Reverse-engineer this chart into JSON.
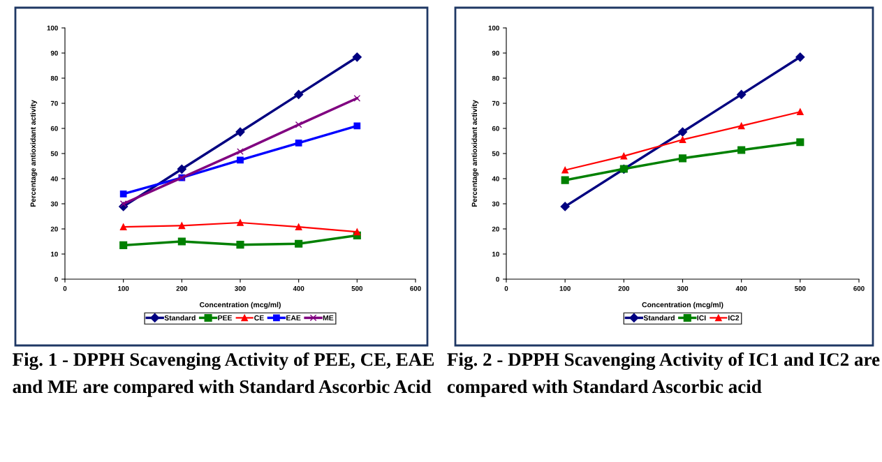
{
  "chart_data": [
    {
      "type": "line",
      "xlabel": "Concentration (mcg/ml)",
      "ylabel": "Percentage antioxidant activity",
      "x": [
        100,
        200,
        300,
        400,
        500
      ],
      "series": [
        {
          "name": "Standard",
          "color": "#000080",
          "marker": "diamond",
          "values": [
            28.9,
            43.8,
            58.6,
            73.5,
            88.4
          ]
        },
        {
          "name": "PEE",
          "color": "#008000",
          "marker": "square",
          "values": [
            13.5,
            15.0,
            13.7,
            14.1,
            17.4
          ]
        },
        {
          "name": "CE",
          "color": "#ff0000",
          "marker": "triangle",
          "values": [
            20.8,
            21.3,
            22.5,
            20.8,
            18.8
          ]
        },
        {
          "name": "EAE",
          "color": "#0000ff",
          "marker": "square",
          "values": [
            33.9,
            40.4,
            47.4,
            54.2,
            61.0
          ]
        },
        {
          "name": "ME",
          "color": "#800080",
          "marker": "cross",
          "values": [
            30.0,
            40.4,
            50.8,
            61.5,
            72.0
          ]
        }
      ],
      "xlim": [
        0,
        600
      ],
      "xticks": [
        0,
        100,
        200,
        300,
        400,
        500,
        600
      ],
      "ylim": [
        0,
        100
      ],
      "yticks": [
        0,
        10,
        20,
        30,
        40,
        50,
        60,
        70,
        80,
        90,
        100
      ],
      "legend": "bottom",
      "annotations": [
        "Fig. 1 - DPPH Scavenging Activity of PEE, CE, EAE and ME are compared with Standard Ascorbic Acid"
      ]
    },
    {
      "type": "line",
      "xlabel": "Concentration (mcg/ml)",
      "ylabel": "Percentage antioxidant activity",
      "x": [
        100,
        200,
        300,
        400,
        500
      ],
      "series": [
        {
          "name": "Standard",
          "color": "#000080",
          "marker": "diamond",
          "values": [
            28.9,
            43.8,
            58.6,
            73.5,
            88.4
          ]
        },
        {
          "name": "ICI",
          "color": "#008000",
          "marker": "square",
          "values": [
            39.4,
            43.9,
            48.1,
            51.4,
            54.5
          ]
        },
        {
          "name": "IC2",
          "color": "#ff0000",
          "marker": "triangle",
          "values": [
            43.4,
            49.0,
            55.5,
            61.0,
            66.6
          ]
        }
      ],
      "xlim": [
        0,
        600
      ],
      "xticks": [
        0,
        100,
        200,
        300,
        400,
        500,
        600
      ],
      "ylim": [
        0,
        100
      ],
      "yticks": [
        0,
        10,
        20,
        30,
        40,
        50,
        60,
        70,
        80,
        90,
        100
      ],
      "legend": "bottom",
      "annotations": [
        "Fig. 2 - DPPH Scavenging Activity of IC1 and IC2 are compared with Standard Ascorbic acid"
      ]
    }
  ]
}
